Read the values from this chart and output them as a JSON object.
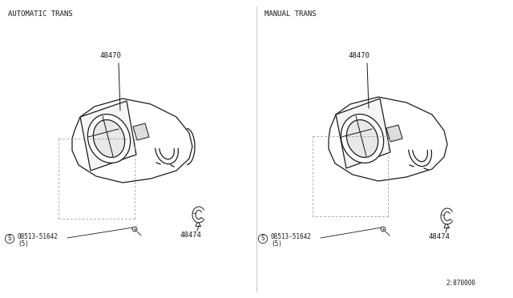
{
  "background_color": "#ffffff",
  "line_color": "#1a1a1a",
  "fig_width": 6.4,
  "fig_height": 3.72,
  "dpi": 100,
  "left_label": "AUTOMATIC TRANS",
  "right_label": "MANUAL TRANS",
  "part_48470": "48470",
  "part_48474": "48474",
  "part_screw": "08513-51642",
  "part_screw_qty": "(5)",
  "diagram_number": "2:870000",
  "font_size_label": 6.5,
  "font_size_part": 6.5
}
